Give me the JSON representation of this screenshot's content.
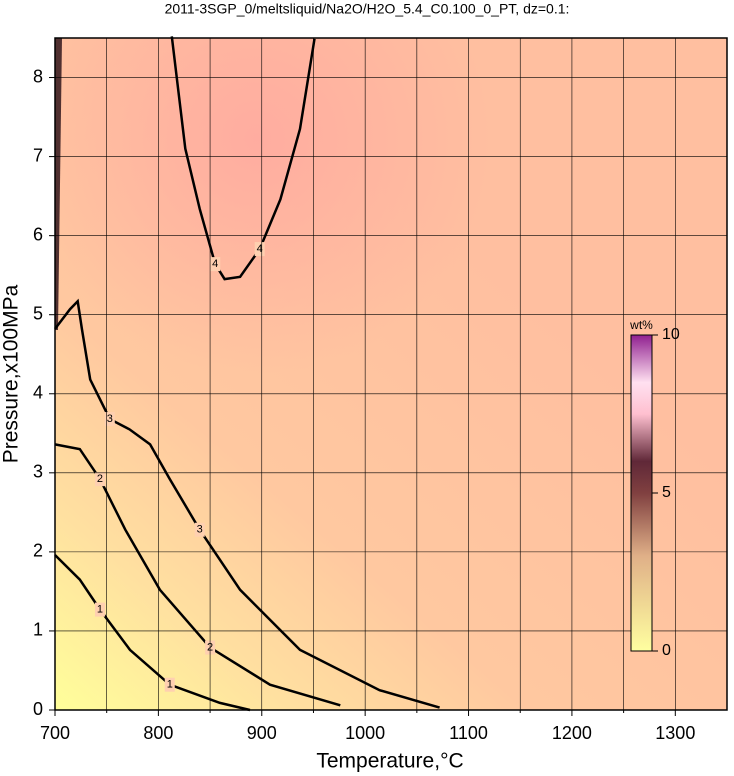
{
  "chart_data": {
    "type": "contour",
    "title": "2011-3SGP_0/meltsliquid/Na2O/H2O_5.4_C0.100_0_PT, dz=0.1:",
    "xlabel": "Temperature,°C",
    "ylabel": "Pressure,x100MPa",
    "xlim": [
      700,
      1350
    ],
    "ylim": [
      0,
      8.5
    ],
    "xticks": [
      700,
      800,
      900,
      1000,
      1100,
      1200,
      1300
    ],
    "xminorticks": [
      750,
      850,
      950,
      1050,
      1150,
      1250
    ],
    "yticks": [
      0,
      1,
      2,
      3,
      4,
      5,
      6,
      7,
      8
    ],
    "grid": true,
    "contours": [
      {
        "level": 1,
        "x": [
          700,
          724,
          743.5,
          772.5,
          811,
          859.5,
          888.6
        ],
        "y": [
          1.96,
          1.65,
          1.27,
          0.76,
          0.32,
          0.09,
          0
        ]
      },
      {
        "level": 2,
        "x": [
          700,
          724,
          743.5,
          768,
          801.5,
          850,
          908,
          976
        ],
        "y": [
          3.36,
          3.3,
          2.92,
          2.28,
          1.52,
          0.79,
          0.32,
          0.06
        ]
      },
      {
        "level": 3,
        "x": [
          700,
          714.5,
          722,
          726,
          734,
          753,
          772,
          792,
          811,
          840,
          879,
          937,
          1014,
          1072
        ],
        "y": [
          4.82,
          5.07,
          5.17,
          4.82,
          4.18,
          3.68,
          3.55,
          3.36,
          2.92,
          2.28,
          1.52,
          0.76,
          0.25,
          0.03
        ]
      },
      {
        "level": 4,
        "x": [
          813,
          826,
          840,
          855,
          864,
          879,
          898,
          918,
          937,
          951
        ],
        "y": [
          8.52,
          7.1,
          6.34,
          5.64,
          5.45,
          5.48,
          5.83,
          6.46,
          7.35,
          8.49
        ]
      }
    ],
    "colorbar": {
      "label": "wt%",
      "lim": [
        0,
        10
      ],
      "ticks": [
        0,
        5,
        10
      ]
    }
  }
}
